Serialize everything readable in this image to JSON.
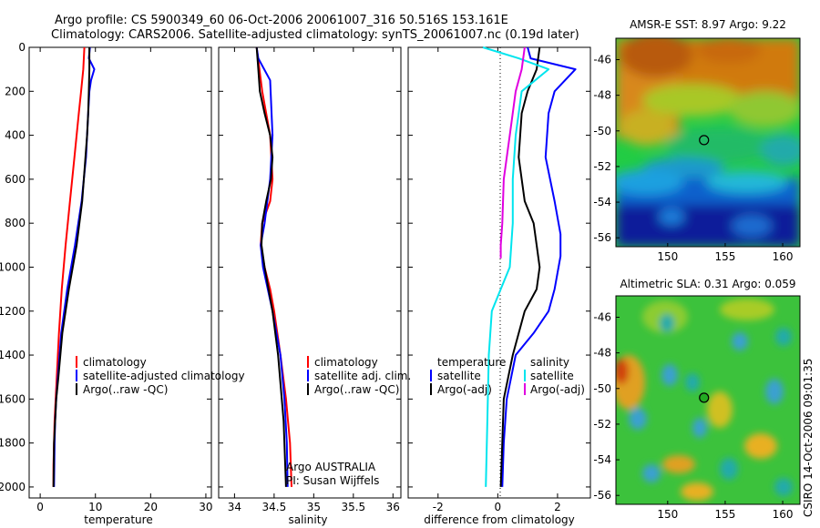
{
  "header": {
    "line1": "Argo profile: CS 5900349_60 06-Oct-2006 20061007_316 50.516S 153.161E",
    "line2": "Climatology: CARS2006. Satellite-adjusted climatology: synTS_20061007.nc (0.19d later)"
  },
  "watermark": "CSIRO 14-Oct-2006 09:01:35",
  "colors": {
    "climatology": "#ff0000",
    "satellite": "#0000ff",
    "argo": "#000000",
    "satellite_diff_sal": "#00e5ee",
    "argo_adj_sal": "#e000e0"
  },
  "chart_data": [
    {
      "id": "temperature",
      "type": "line",
      "xlabel": "temperature",
      "ylabel": "",
      "xlim": [
        -2,
        31
      ],
      "ylim": [
        2050,
        0
      ],
      "xticks": [
        "0",
        "10",
        "20",
        "30"
      ],
      "yticks": [
        "0",
        "200",
        "400",
        "600",
        "800",
        "1000",
        "1200",
        "1400",
        "1600",
        "1800",
        "2000"
      ],
      "legend": [
        "climatology",
        "satellite-adjusted climatology",
        "Argo(..raw -QC)"
      ],
      "series": [
        {
          "name": "climatology",
          "color": "#ff0000",
          "x": [
            8.0,
            7.9,
            7.8,
            7.4,
            7.0,
            6.2,
            5.4,
            4.6,
            3.9,
            3.4,
            3.0,
            2.8,
            2.6,
            2.5,
            2.4,
            2.4
          ],
          "y": [
            0,
            50,
            100,
            200,
            300,
            500,
            700,
            900,
            1100,
            1300,
            1500,
            1600,
            1700,
            1800,
            1900,
            2000
          ]
        },
        {
          "name": "satellite-adjusted climatology",
          "color": "#0000ff",
          "x": [
            9.0,
            8.8,
            9.8,
            9.2,
            8.9,
            8.7,
            8.3,
            7.5,
            6.3,
            4.9,
            3.8,
            3.2,
            2.9,
            2.7,
            2.6,
            2.5
          ],
          "y": [
            0,
            50,
            100,
            150,
            200,
            300,
            500,
            700,
            900,
            1100,
            1300,
            1500,
            1600,
            1700,
            1800,
            2000
          ]
        },
        {
          "name": "Argo(..raw -QC)",
          "color": "#000000",
          "x": [
            8.9,
            8.9,
            8.8,
            8.7,
            8.5,
            8.2,
            7.6,
            6.6,
            5.2,
            4.0,
            3.3,
            2.9,
            2.7,
            2.5,
            2.4
          ],
          "y": [
            0,
            100,
            200,
            300,
            400,
            500,
            700,
            900,
            1100,
            1300,
            1500,
            1600,
            1700,
            1800,
            2000
          ]
        }
      ]
    },
    {
      "id": "salinity",
      "type": "line",
      "xlabel": "salinity",
      "ylabel": "",
      "xlim": [
        33.8,
        36.1
      ],
      "ylim": [
        2050,
        0
      ],
      "xticks": [
        "34",
        "34.5",
        "35",
        "35.5",
        "36"
      ],
      "yticks": [],
      "legend": [
        "climatology",
        "satellite adj. clim.",
        "Argo(..raw -QC)"
      ],
      "annotations": [
        "Argo AUSTRALIA",
        "PI: Susan Wijffels"
      ],
      "series": [
        {
          "name": "climatology",
          "color": "#ff0000",
          "x": [
            34.28,
            34.35,
            34.45,
            34.48,
            34.45,
            34.35,
            34.33,
            34.38,
            34.45,
            34.5,
            34.58,
            34.65,
            34.7,
            34.72
          ],
          "y": [
            0,
            200,
            400,
            600,
            700,
            800,
            900,
            1000,
            1100,
            1200,
            1400,
            1600,
            1800,
            2000
          ]
        },
        {
          "name": "satellite adj. clim.",
          "color": "#0000ff",
          "x": [
            34.28,
            34.3,
            34.45,
            34.48,
            34.45,
            34.38,
            34.33,
            34.36,
            34.42,
            34.48,
            34.58,
            34.63,
            34.66,
            34.67
          ],
          "y": [
            0,
            50,
            150,
            400,
            600,
            800,
            900,
            1000,
            1100,
            1200,
            1400,
            1600,
            1800,
            2000
          ]
        },
        {
          "name": "Argo(..raw -QC)",
          "color": "#000000",
          "x": [
            34.28,
            34.3,
            34.32,
            34.38,
            34.45,
            34.48,
            34.46,
            34.4,
            34.35,
            34.34,
            34.38,
            34.48,
            34.55,
            34.62,
            34.65
          ],
          "y": [
            0,
            100,
            200,
            300,
            400,
            500,
            600,
            700,
            800,
            900,
            1000,
            1200,
            1400,
            1700,
            2000
          ]
        }
      ]
    },
    {
      "id": "difference",
      "type": "line",
      "xlabel": "difference from climatology",
      "ylabel": "",
      "xlim": [
        -3.0,
        3.1
      ],
      "ylim": [
        2050,
        0
      ],
      "xticks": [
        "-2",
        "0",
        "2"
      ],
      "yticks": [],
      "legend_left_title": "temperature",
      "legend_right_title": "salinity",
      "legend": [
        "satellite",
        "Argo(-adj)",
        "satellite",
        "Argo(-adj)"
      ],
      "series": [
        {
          "name": "temperature satellite",
          "color": "#0000ff",
          "x": [
            1.0,
            1.1,
            2.6,
            1.9,
            1.7,
            1.6,
            1.9,
            2.1,
            2.1,
            1.9,
            1.7,
            1.2,
            0.6,
            0.3,
            0.2,
            0.15
          ],
          "y": [
            0,
            50,
            100,
            200,
            300,
            500,
            700,
            850,
            950,
            1100,
            1200,
            1300,
            1400,
            1600,
            1800,
            2000
          ]
        },
        {
          "name": "temperature Argo(-adj)",
          "color": "#000000",
          "x": [
            1.4,
            1.3,
            1.0,
            0.8,
            0.7,
            0.9,
            1.2,
            1.3,
            1.4,
            1.3,
            0.9,
            0.5,
            0.2,
            0.15,
            0.1
          ],
          "y": [
            0,
            100,
            200,
            300,
            500,
            700,
            800,
            900,
            1000,
            1100,
            1200,
            1400,
            1600,
            1800,
            2000
          ]
        },
        {
          "name": "salinity satellite",
          "color": "#00e5ee",
          "x": [
            -0.5,
            0.7,
            1.7,
            0.8,
            0.6,
            0.5,
            0.5,
            0.4,
            0.1,
            -0.2,
            -0.3,
            -0.35,
            -0.4
          ],
          "y": [
            0,
            50,
            100,
            200,
            400,
            600,
            800,
            1000,
            1100,
            1200,
            1400,
            1700,
            2000
          ]
        },
        {
          "name": "salinity Argo(-adj)",
          "color": "#e000e0",
          "x": [
            0.9,
            0.8,
            0.6,
            0.4,
            0.2,
            0.15,
            0.1,
            0.1
          ],
          "y": [
            0,
            100,
            200,
            400,
            600,
            800,
            900,
            960
          ]
        }
      ]
    },
    {
      "id": "sst_map",
      "type": "heatmap",
      "title": "AMSR-E SST: 8.97 Argo: 9.22",
      "xlim": [
        145.5,
        161.5
      ],
      "ylim": [
        -56.5,
        -44.8
      ],
      "xticks": [
        "150",
        "155",
        "160"
      ],
      "yticks": [
        "-46",
        "-48",
        "-50",
        "-52",
        "-54",
        "-56"
      ],
      "marker": {
        "lon": 153.161,
        "lat": -50.516
      }
    },
    {
      "id": "sla_map",
      "type": "heatmap",
      "title": "Altimetric SLA: 0.31 Argo: 0.059",
      "xlim": [
        145.5,
        161.5
      ],
      "ylim": [
        -56.5,
        -44.8
      ],
      "xticks": [
        "150",
        "155",
        "160"
      ],
      "yticks": [
        "-46",
        "-48",
        "-50",
        "-52",
        "-54",
        "-56"
      ],
      "marker": {
        "lon": 153.161,
        "lat": -50.516
      }
    }
  ]
}
